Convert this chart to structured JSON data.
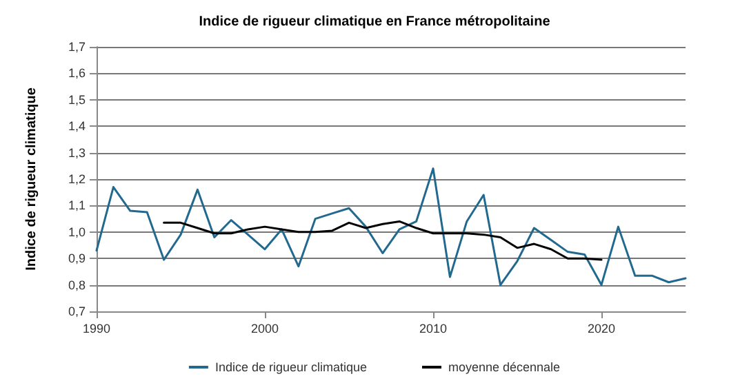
{
  "chart_data": {
    "type": "line",
    "title": "Indice de rigueur climatique en France métropolitaine",
    "ylabel": "Indice de rigueur climatique",
    "series": [
      {
        "name": "Indice de rigueur climatique",
        "color": "#21698f",
        "x": [
          1990,
          1991,
          1992,
          1993,
          1994,
          1995,
          1996,
          1997,
          1998,
          1999,
          2000,
          2001,
          2002,
          2003,
          2004,
          2005,
          2006,
          2007,
          2008,
          2009,
          2010,
          2011,
          2012,
          2013,
          2014,
          2015,
          2016,
          2017,
          2018,
          2019,
          2020,
          2021,
          2022,
          2023,
          2024,
          2025
        ],
        "values": [
          0.93,
          1.17,
          1.08,
          1.075,
          0.895,
          0.99,
          1.16,
          0.98,
          1.045,
          0.99,
          0.935,
          1.01,
          0.87,
          1.05,
          1.07,
          1.09,
          1.02,
          0.92,
          1.01,
          1.04,
          1.24,
          0.83,
          1.04,
          1.14,
          0.8,
          0.89,
          1.015,
          0.97,
          0.925,
          0.915,
          0.8,
          1.02,
          0.835,
          0.835,
          0.81,
          0.825
        ]
      },
      {
        "name": "moyenne décennale",
        "color": "#000000",
        "x": [
          1994,
          1995,
          1996,
          1997,
          1998,
          1999,
          2000,
          2001,
          2002,
          2003,
          2004,
          2005,
          2006,
          2007,
          2008,
          2009,
          2010,
          2011,
          2012,
          2013,
          2014,
          2015,
          2016,
          2017,
          2018,
          2019,
          2020
        ],
        "values": [
          1.035,
          1.035,
          1.015,
          0.995,
          0.995,
          1.01,
          1.02,
          1.01,
          1.0,
          1.0,
          1.005,
          1.035,
          1.015,
          1.03,
          1.04,
          1.015,
          0.995,
          0.995,
          0.995,
          0.99,
          0.98,
          0.94,
          0.955,
          0.935,
          0.9,
          0.9,
          0.895
        ]
      }
    ],
    "xlim": [
      1990,
      2025
    ],
    "xticks": [
      1990,
      2000,
      2010,
      2020
    ],
    "ylim": [
      0.7,
      1.7
    ],
    "yticks": [
      {
        "value": 0.7,
        "label": "0,7"
      },
      {
        "value": 0.8,
        "label": "0,8"
      },
      {
        "value": 0.9,
        "label": "0,9"
      },
      {
        "value": 1.0,
        "label": "1,0"
      },
      {
        "value": 1.1,
        "label": "1,1"
      },
      {
        "value": 1.2,
        "label": "1,2"
      },
      {
        "value": 1.3,
        "label": "1,3"
      },
      {
        "value": 1.4,
        "label": "1,4"
      },
      {
        "value": 1.5,
        "label": "1,5"
      },
      {
        "value": 1.6,
        "label": "1,6"
      },
      {
        "value": 1.7,
        "label": "1,7"
      }
    ],
    "grid": "y",
    "legend": "bottom",
    "marker": "none",
    "line_style": "solid"
  }
}
